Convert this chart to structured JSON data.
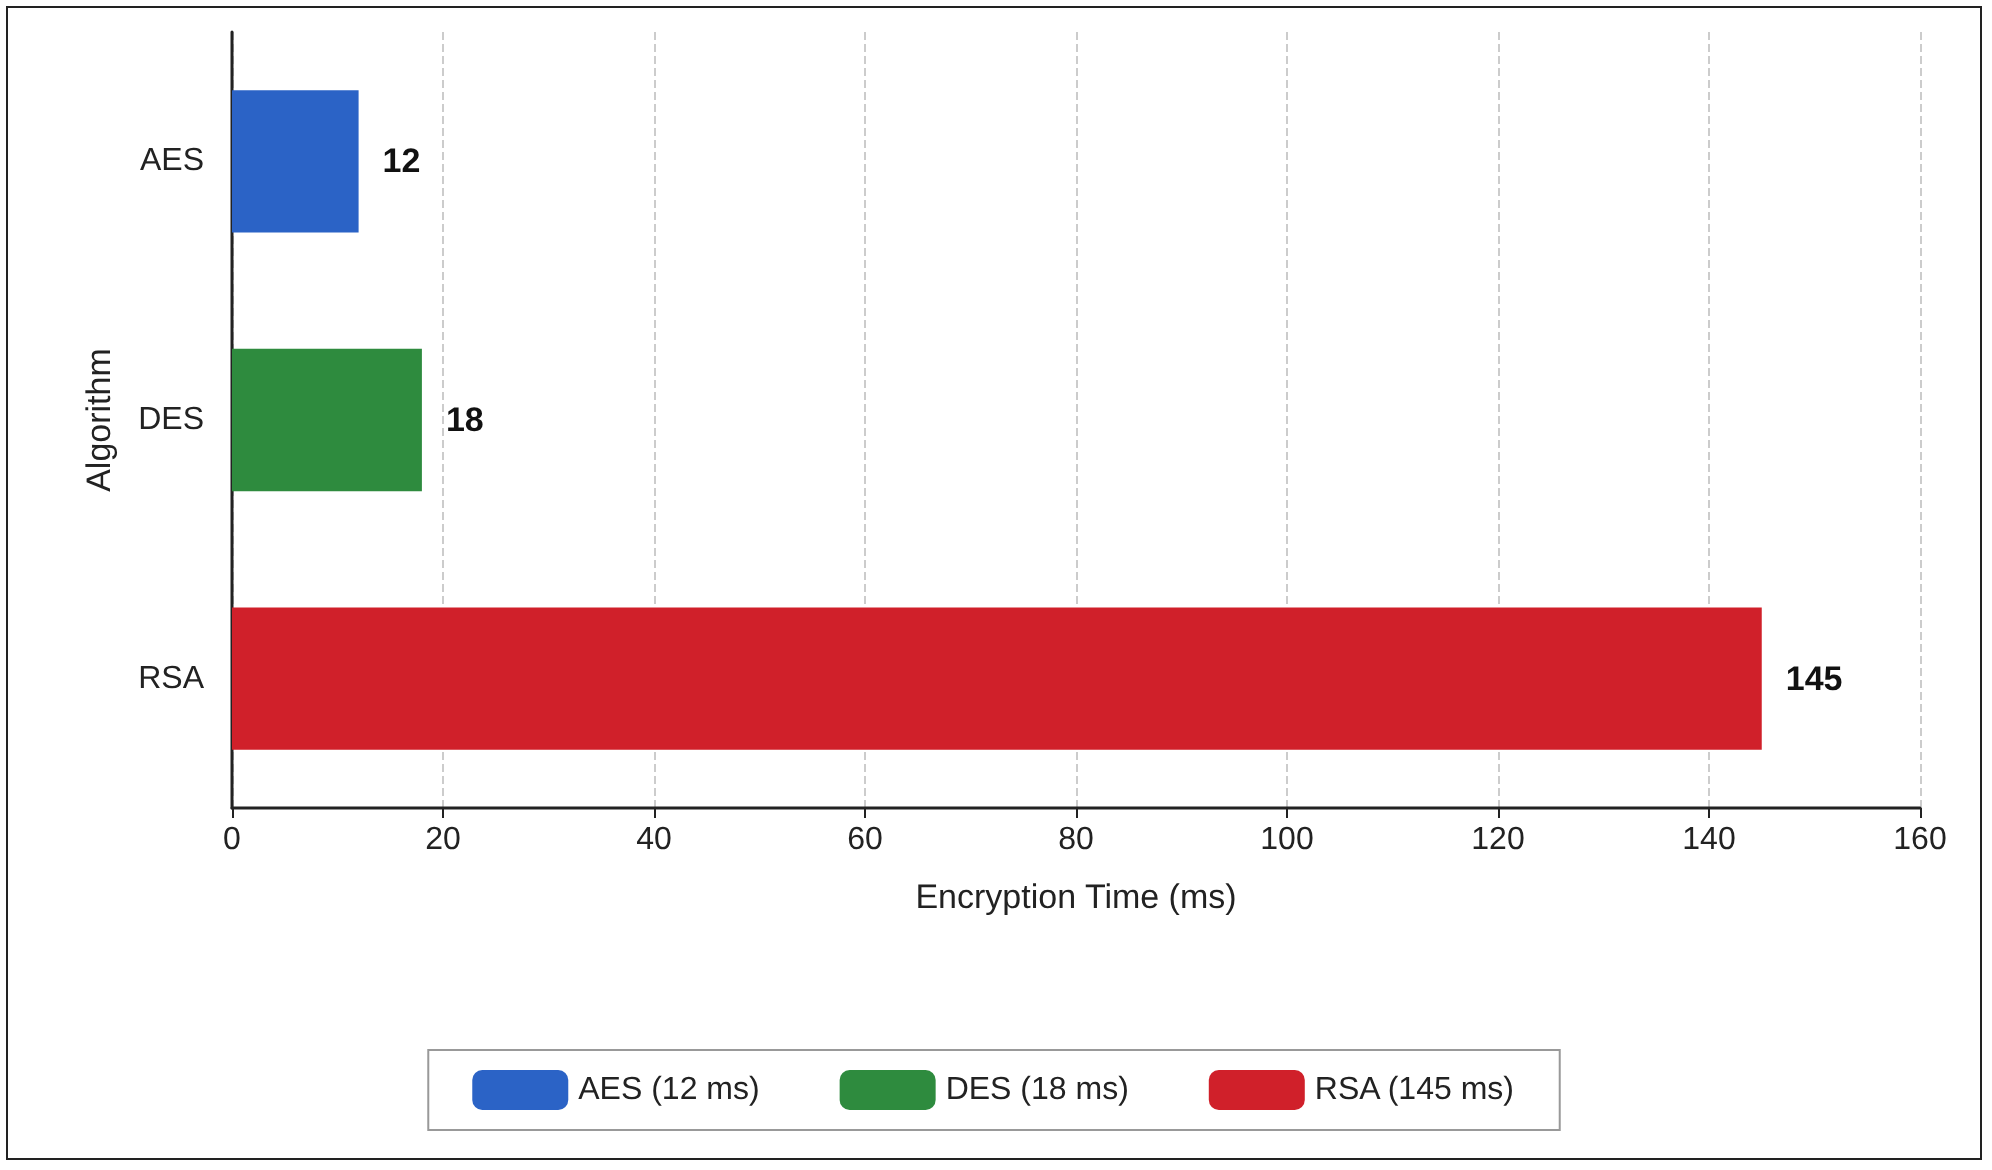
{
  "chart_data": {
    "type": "bar",
    "orientation": "horizontal",
    "xlabel": "Encryption Time (ms)",
    "ylabel": "Algorithm",
    "categories": [
      "AES",
      "DES",
      "RSA"
    ],
    "series": [
      {
        "name": "AES (12 ms)",
        "color": "#2b63c6",
        "values": [
          12,
          null,
          null
        ]
      },
      {
        "name": "DES (18 ms)",
        "color": "#2e8b3e",
        "values": [
          null,
          18,
          null
        ]
      },
      {
        "name": "RSA (145 ms)",
        "color": "#d0202a",
        "values": [
          null,
          null,
          145
        ]
      }
    ],
    "xlim": [
      0,
      160
    ],
    "xticks": [
      0,
      20,
      40,
      60,
      80,
      100,
      120,
      140,
      160
    ],
    "grid": "x",
    "legend": "bottom",
    "data_labels": true
  }
}
